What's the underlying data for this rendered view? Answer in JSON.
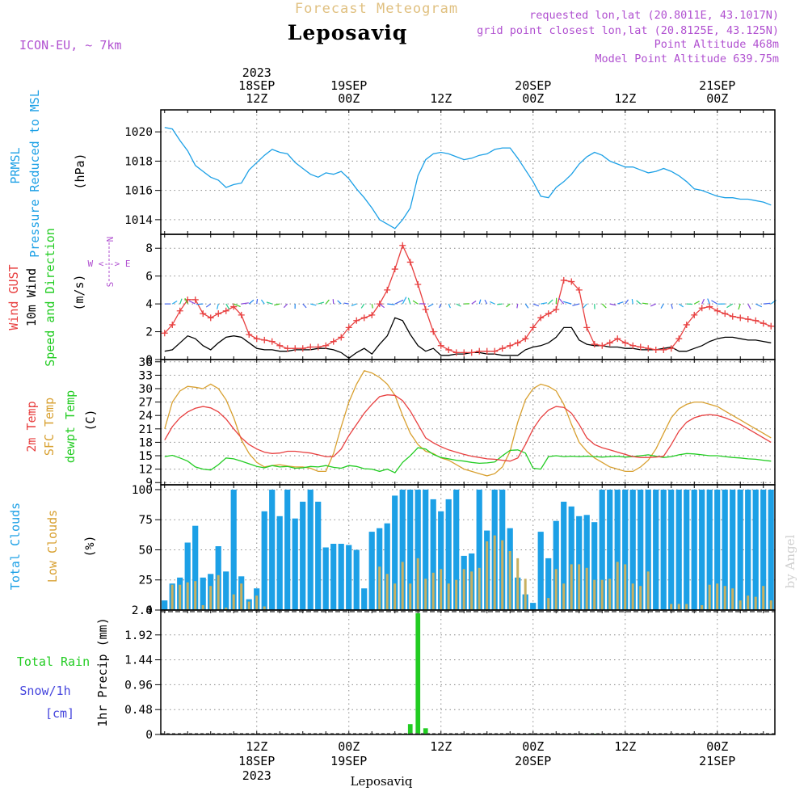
{
  "header": {
    "product": "Forecast Meteogram",
    "model": "ICON-EU, ~ 7km",
    "location": "Leposaviq",
    "requested": "requested lon,lat (20.8011E, 43.1017N)",
    "grid_point": "grid point closest lon,lat (20.8125E, 43.125N)",
    "point_altitude": "Point Altitude 468m",
    "model_altitude": "Model Point Altitude 639.75m",
    "credit": "by Angel",
    "footer_location": "Leposaviq"
  },
  "colors": {
    "pressure": "#1ca0e6",
    "gust": "#e84040",
    "wind": "#000000",
    "temp2m": "#e84040",
    "sfc": "#d8a030",
    "dewpt": "#22cc22",
    "total_clouds": "#1ca0e6",
    "low_clouds": "#c8b060",
    "rain": "#22cc22",
    "snow": "#4444dd",
    "magenta": "#b050d0",
    "title_orange": "#e0c080"
  },
  "time_axis": {
    "top_labels": [
      {
        "t": 12,
        "lines": [
          "2023",
          "18SEP",
          "12Z"
        ]
      },
      {
        "t": 24,
        "lines": [
          "19SEP",
          "00Z"
        ]
      },
      {
        "t": 36,
        "lines": [
          "12Z"
        ]
      },
      {
        "t": 48,
        "lines": [
          "20SEP",
          "00Z"
        ]
      },
      {
        "t": 60,
        "lines": [
          "12Z"
        ]
      },
      {
        "t": 72,
        "lines": [
          "21SEP",
          "00Z"
        ]
      }
    ],
    "bottom_labels": [
      {
        "t": 12,
        "lines": [
          "12Z",
          "18SEP",
          "2023"
        ]
      },
      {
        "t": 24,
        "lines": [
          "00Z",
          "19SEP"
        ]
      },
      {
        "t": 36,
        "lines": [
          "12Z"
        ]
      },
      {
        "t": 48,
        "lines": [
          "00Z",
          "20SEP"
        ]
      },
      {
        "t": 60,
        "lines": [
          "12Z"
        ]
      },
      {
        "t": 72,
        "lines": [
          "00Z",
          "21SEP"
        ]
      }
    ]
  },
  "panels": {
    "pressure": {
      "labels": [
        "PRMSL",
        "Pressure Reduced to MSL"
      ],
      "unit": "(hPa)"
    },
    "wind": {
      "labels": [
        "Wind GUST",
        "10m Wind",
        "Speed and Direction"
      ],
      "unit": "(m/s)",
      "compass": [
        "N",
        "W <--> E",
        "S"
      ]
    },
    "temp": {
      "labels": [
        "2m Temp",
        "SFC Temp",
        "dewpt Temp"
      ],
      "unit": "(C)"
    },
    "cloud": {
      "labels": [
        "Total Clouds",
        "Low Clouds"
      ],
      "unit": "(%)"
    },
    "precip": {
      "labels": [
        "Total Rain",
        "Snow/1h",
        "[cm]"
      ],
      "ylabel": "1hr Precip (mm)"
    }
  },
  "chart_data": [
    {
      "type": "line",
      "name": "PRMSL",
      "ylim": [
        1013,
        1021.5
      ],
      "yticks": [
        1014,
        1016,
        1018,
        1020
      ],
      "x": [
        0,
        1,
        2,
        3,
        4,
        5,
        6,
        7,
        8,
        9,
        10,
        11,
        12,
        13,
        14,
        15,
        16,
        17,
        18,
        19,
        20,
        21,
        22,
        23,
        24,
        25,
        26,
        27,
        28,
        29,
        30,
        31,
        32,
        33,
        34,
        35,
        36,
        37,
        38,
        39,
        40,
        41,
        42,
        43,
        44,
        45,
        46,
        47,
        48,
        49,
        50,
        51,
        52,
        53,
        54,
        55,
        56,
        57,
        58,
        59,
        60,
        61,
        62,
        63,
        64,
        65,
        66,
        67,
        68,
        69,
        70,
        71,
        72,
        73,
        74,
        75,
        76,
        77,
        78,
        79
      ],
      "values": [
        1020.3,
        1020.2,
        1019.4,
        1018.7,
        1017.7,
        1017.3,
        1016.9,
        1016.7,
        1016.2,
        1016.4,
        1016.5,
        1017.4,
        1017.9,
        1018.4,
        1018.8,
        1018.6,
        1018.5,
        1017.9,
        1017.5,
        1017.1,
        1016.9,
        1017.2,
        1017.1,
        1017.3,
        1016.8,
        1016.1,
        1015.5,
        1014.8,
        1014.0,
        1013.7,
        1013.4,
        1014.0,
        1014.8,
        1017.0,
        1018.1,
        1018.5,
        1018.6,
        1018.5,
        1018.3,
        1018.1,
        1018.2,
        1018.4,
        1018.5,
        1018.8,
        1018.9,
        1018.9,
        1018.2,
        1017.4,
        1016.6,
        1015.6,
        1015.5,
        1016.2,
        1016.6,
        1017.1,
        1017.8,
        1018.3,
        1018.6,
        1018.4,
        1018.0,
        1017.8,
        1017.6,
        1017.6,
        1017.4,
        1017.2,
        1017.3,
        1017.5,
        1017.3,
        1017.0,
        1016.6,
        1016.1,
        1016.0,
        1015.8,
        1015.6,
        1015.5,
        1015.5,
        1015.4,
        1015.4,
        1015.3,
        1015.2,
        1015.0
      ]
    },
    {
      "type": "line",
      "name": "wind",
      "ylim": [
        0,
        9
      ],
      "yticks": [
        0,
        2,
        4,
        6,
        8
      ],
      "x": [
        0,
        1,
        2,
        3,
        4,
        5,
        6,
        7,
        8,
        9,
        10,
        11,
        12,
        13,
        14,
        15,
        16,
        17,
        18,
        19,
        20,
        21,
        22,
        23,
        24,
        25,
        26,
        27,
        28,
        29,
        30,
        31,
        32,
        33,
        34,
        35,
        36,
        37,
        38,
        39,
        40,
        41,
        42,
        43,
        44,
        45,
        46,
        47,
        48,
        49,
        50,
        51,
        52,
        53,
        54,
        55,
        56,
        57,
        58,
        59,
        60,
        61,
        62,
        63,
        64,
        65,
        66,
        67,
        68,
        69,
        70,
        71,
        72,
        73,
        74,
        75,
        76,
        77,
        78,
        79
      ],
      "gust": [
        1.9,
        2.5,
        3.5,
        4.3,
        4.3,
        3.3,
        3.0,
        3.3,
        3.5,
        3.8,
        3.2,
        1.8,
        1.5,
        1.4,
        1.3,
        1.0,
        0.8,
        0.8,
        0.8,
        0.9,
        0.9,
        1.0,
        1.3,
        1.6,
        2.3,
        2.8,
        3.0,
        3.2,
        4.0,
        5.0,
        6.5,
        8.2,
        7.0,
        5.4,
        3.6,
        2.0,
        1.0,
        0.7,
        0.5,
        0.5,
        0.5,
        0.6,
        0.6,
        0.6,
        0.8,
        1.0,
        1.2,
        1.5,
        2.3,
        3.0,
        3.3,
        3.6,
        5.7,
        5.6,
        5.0,
        2.3,
        1.1,
        1.0,
        1.2,
        1.5,
        1.2,
        1.0,
        0.9,
        0.8,
        0.7,
        0.7,
        0.8,
        1.5,
        2.5,
        3.2,
        3.7,
        3.8,
        3.5,
        3.3,
        3.1,
        3.0,
        2.9,
        2.8,
        2.6,
        2.4
      ],
      "speed": [
        0.6,
        0.7,
        1.2,
        1.7,
        1.5,
        1.0,
        0.7,
        1.2,
        1.6,
        1.7,
        1.6,
        1.2,
        0.8,
        0.7,
        0.7,
        0.6,
        0.6,
        0.7,
        0.7,
        0.7,
        0.8,
        0.8,
        0.7,
        0.5,
        0.1,
        0.5,
        0.8,
        0.4,
        1.1,
        1.7,
        3.0,
        2.8,
        1.8,
        1.0,
        0.6,
        0.8,
        0.3,
        0.3,
        0.4,
        0.4,
        0.5,
        0.5,
        0.4,
        0.4,
        0.3,
        0.3,
        0.3,
        0.7,
        0.9,
        1.0,
        1.2,
        1.6,
        2.3,
        2.3,
        1.4,
        1.1,
        1.0,
        1.0,
        0.9,
        0.9,
        0.8,
        0.8,
        0.7,
        0.7,
        0.7,
        0.8,
        0.9,
        0.6,
        0.6,
        0.8,
        1.0,
        1.3,
        1.5,
        1.6,
        1.6,
        1.5,
        1.4,
        1.4,
        1.3,
        1.2
      ]
    },
    {
      "type": "line",
      "name": "temperature",
      "ylim": [
        8.5,
        36.5
      ],
      "yticks": [
        9,
        12,
        15,
        18,
        21,
        24,
        27,
        30,
        33,
        36
      ],
      "x": [
        0,
        1,
        2,
        3,
        4,
        5,
        6,
        7,
        8,
        9,
        10,
        11,
        12,
        13,
        14,
        15,
        16,
        17,
        18,
        19,
        20,
        21,
        22,
        23,
        24,
        25,
        26,
        27,
        28,
        29,
        30,
        31,
        32,
        33,
        34,
        35,
        36,
        37,
        38,
        39,
        40,
        41,
        42,
        43,
        44,
        45,
        46,
        47,
        48,
        49,
        50,
        51,
        52,
        53,
        54,
        55,
        56,
        57,
        58,
        59,
        60,
        61,
        62,
        63,
        64,
        65,
        66,
        67,
        68,
        69,
        70,
        71,
        72,
        73,
        74,
        75,
        76,
        77,
        78,
        79
      ],
      "t2m": [
        18.5,
        21.5,
        23.5,
        24.8,
        25.6,
        26.0,
        25.7,
        24.8,
        23.2,
        21.0,
        19.0,
        17.5,
        16.5,
        15.8,
        15.5,
        15.6,
        16.0,
        16.0,
        15.8,
        15.6,
        15.2,
        14.8,
        14.8,
        16.5,
        19.5,
        22.0,
        24.5,
        26.5,
        28.2,
        28.6,
        28.5,
        27.3,
        25.0,
        22.0,
        19.0,
        17.9,
        17.0,
        16.3,
        15.8,
        15.3,
        14.9,
        14.6,
        14.3,
        14.2,
        14.0,
        13.8,
        14.5,
        17.5,
        21.0,
        23.5,
        25.2,
        26.0,
        25.8,
        24.5,
        22.0,
        19.0,
        17.5,
        16.8,
        16.3,
        15.8,
        15.3,
        14.8,
        14.6,
        14.6,
        14.7,
        14.9,
        17.5,
        20.5,
        22.5,
        23.5,
        24.0,
        24.2,
        24.0,
        23.5,
        22.8,
        22.0,
        21.0,
        20.0,
        19.0,
        18.0
      ],
      "sfc": [
        21.0,
        27.0,
        29.5,
        30.5,
        30.3,
        30.0,
        31.0,
        30.0,
        27.5,
        23.5,
        18.5,
        15.5,
        13.5,
        12.5,
        12.8,
        13.0,
        12.7,
        12.5,
        12.5,
        12.2,
        11.5,
        11.5,
        15.5,
        21.5,
        27.0,
        31.0,
        34.0,
        33.5,
        32.5,
        31.0,
        28.5,
        24.0,
        20.0,
        17.5,
        16.0,
        15.5,
        14.5,
        14.0,
        13.0,
        12.0,
        11.5,
        11.0,
        10.5,
        11.0,
        12.5,
        16.0,
        22.5,
        27.5,
        30.0,
        31.0,
        30.5,
        29.5,
        26.5,
        22.0,
        18.0,
        16.0,
        14.5,
        13.5,
        12.5,
        12.0,
        11.5,
        11.5,
        12.5,
        14.0,
        16.5,
        20.0,
        23.5,
        25.5,
        26.5,
        27.0,
        27.0,
        26.5,
        26.0,
        25.0,
        24.0,
        23.0,
        22.0,
        21.0,
        20.0,
        19.0
      ],
      "dewpt": [
        14.8,
        15.1,
        14.5,
        13.8,
        12.5,
        12.0,
        11.8,
        13.0,
        14.5,
        14.3,
        13.8,
        13.2,
        12.6,
        12.3,
        12.8,
        12.5,
        12.6,
        12.2,
        12.3,
        12.6,
        12.5,
        12.8,
        12.4,
        12.2,
        12.8,
        12.6,
        12.1,
        12.0,
        11.5,
        12.0,
        11.2,
        13.5,
        15.0,
        16.8,
        16.5,
        15.3,
        14.6,
        14.3,
        14.0,
        13.8,
        13.5,
        13.3,
        13.4,
        13.6,
        15.0,
        16.2,
        16.3,
        15.6,
        12.2,
        12.0,
        14.8,
        15.0,
        14.8,
        14.9,
        14.8,
        14.9,
        14.8,
        14.7,
        14.8,
        14.9,
        14.7,
        14.8,
        15.0,
        15.2,
        14.9,
        14.6,
        14.8,
        15.2,
        15.5,
        15.4,
        15.2,
        15.0,
        15.0,
        14.8,
        14.6,
        14.5,
        14.3,
        14.2,
        14.0,
        13.8
      ]
    },
    {
      "type": "bar",
      "name": "clouds",
      "ylim": [
        0,
        104
      ],
      "yticks": [
        0,
        25,
        50,
        75,
        100
      ],
      "x": [
        0,
        1,
        2,
        3,
        4,
        5,
        6,
        7,
        8,
        9,
        10,
        11,
        12,
        13,
        14,
        15,
        16,
        17,
        18,
        19,
        20,
        21,
        22,
        23,
        24,
        25,
        26,
        27,
        28,
        29,
        30,
        31,
        32,
        33,
        34,
        35,
        36,
        37,
        38,
        39,
        40,
        41,
        42,
        43,
        44,
        45,
        46,
        47,
        48,
        49,
        50,
        51,
        52,
        53,
        54,
        55,
        56,
        57,
        58,
        59,
        60,
        61,
        62,
        63,
        64,
        65,
        66,
        67,
        68,
        69,
        70,
        71,
        72,
        73,
        74,
        75,
        76,
        77,
        78,
        79
      ],
      "total": [
        8,
        22,
        27,
        56,
        70,
        27,
        30,
        53,
        32,
        100,
        28,
        9,
        18,
        82,
        100,
        78,
        100,
        76,
        90,
        100,
        90,
        52,
        55,
        55,
        54,
        50,
        18,
        65,
        68,
        72,
        95,
        100,
        100,
        100,
        100,
        92,
        82,
        92,
        100,
        45,
        47,
        100,
        66,
        100,
        100,
        68,
        27,
        13,
        6,
        65,
        43,
        74,
        90,
        86,
        78,
        79,
        73,
        100,
        100,
        100,
        100,
        100,
        100,
        100,
        100,
        100,
        100,
        100,
        100,
        100,
        100,
        100,
        100,
        100,
        100,
        100,
        100,
        100,
        100,
        100
      ],
      "low": [
        0,
        21,
        21,
        23,
        24,
        4,
        20,
        29,
        2,
        13,
        22,
        7,
        12,
        3,
        0,
        0,
        0,
        0,
        0,
        0,
        0,
        0,
        0,
        0,
        0,
        0,
        0,
        0,
        36,
        30,
        22,
        40,
        22,
        43,
        26,
        31,
        34,
        22,
        25,
        34,
        32,
        35,
        57,
        62,
        58,
        49,
        43,
        26,
        0,
        0,
        10,
        34,
        22,
        38,
        38,
        35,
        25,
        25,
        26,
        40,
        38,
        22,
        20,
        32,
        0,
        0,
        5,
        5,
        5,
        0,
        4,
        21,
        22,
        20,
        18,
        8,
        12,
        11,
        20,
        8
      ]
    },
    {
      "type": "bar",
      "name": "precip",
      "ylim": [
        0,
        2.4
      ],
      "yticks": [
        0,
        0.48,
        0.96,
        1.44,
        1.92,
        2.4
      ],
      "ytick_labels": [
        "0",
        "0.48",
        "0.96",
        "1.44",
        "1.92",
        "2.4"
      ],
      "rain": [
        {
          "t": 31,
          "v": 0.01
        },
        {
          "t": 32,
          "v": 0.2
        },
        {
          "t": 33,
          "v": 2.34
        },
        {
          "t": 34,
          "v": 0.12
        },
        {
          "t": 56,
          "v": 0.01
        }
      ],
      "snow": []
    }
  ]
}
